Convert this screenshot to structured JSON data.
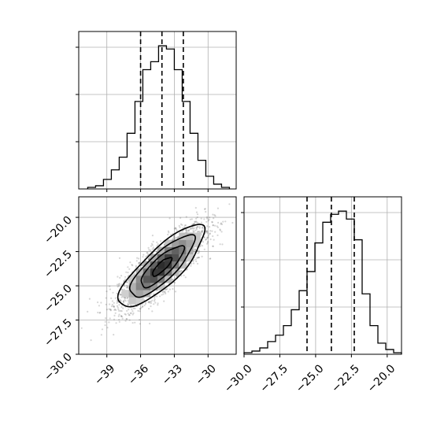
{
  "chart_data": [
    {
      "panel": "histogram-param-1",
      "type": "bar",
      "grid": true,
      "xlim": [
        -41.5,
        -27.5
      ],
      "bin_edges": [
        -40.7,
        -40.0,
        -39.3,
        -38.6,
        -37.9,
        -37.2,
        -36.5,
        -35.8,
        -35.1,
        -34.4,
        -33.7,
        -33.0,
        -32.3,
        -31.6,
        -30.9,
        -30.2,
        -29.5,
        -28.8,
        -28.1
      ],
      "counts": [
        1,
        2,
        6,
        12,
        20,
        35,
        55,
        75,
        80,
        90,
        88,
        75,
        55,
        35,
        18,
        8,
        3,
        1
      ],
      "quantile_lines": [
        -36.0,
        -34.1,
        -32.2
      ],
      "tick_labels": []
    },
    {
      "panel": "scatter-density-param-1-vs-param-2",
      "type": "scatter",
      "grid": true,
      "xlim": [
        -41.5,
        -27.5
      ],
      "ylim": [
        -30.0,
        -18.5
      ],
      "mean": [
        -34.1,
        -23.6
      ],
      "std": [
        1.9,
        1.5
      ],
      "correlation": 0.82,
      "x_ticks": [
        -39,
        -36,
        -33,
        -30
      ],
      "x_tick_labels": [
        "−39",
        "−36",
        "−33",
        "−30"
      ],
      "y_ticks": [
        -20.0,
        -22.5,
        -25.0,
        -27.5,
        -30.0
      ],
      "y_tick_labels": [
        "−20.0",
        "−22.5",
        "−25.0",
        "−27.5",
        "−30.0"
      ]
    },
    {
      "panel": "histogram-param-2",
      "type": "bar",
      "grid": true,
      "xlim": [
        -30.0,
        -19.0
      ],
      "bin_edges": [
        -30.0,
        -29.45,
        -28.9,
        -28.35,
        -27.8,
        -27.25,
        -26.7,
        -26.15,
        -25.6,
        -25.05,
        -24.5,
        -23.95,
        -23.4,
        -22.85,
        -22.3,
        -21.75,
        -21.2,
        -20.65,
        -20.1,
        -19.55,
        -19.0
      ],
      "counts": [
        1,
        2,
        4,
        8,
        12,
        18,
        28,
        40,
        52,
        70,
        83,
        88,
        90,
        85,
        72,
        38,
        18,
        7,
        3,
        1
      ],
      "quantile_lines": [
        -25.6,
        -23.9,
        -22.3
      ],
      "x_ticks": [
        -30.0,
        -27.5,
        -25.0,
        -22.5,
        -20.0
      ],
      "x_tick_labels": [
        "−30.0",
        "−27.5",
        "−25.0",
        "−22.5",
        "−20.0"
      ]
    }
  ]
}
